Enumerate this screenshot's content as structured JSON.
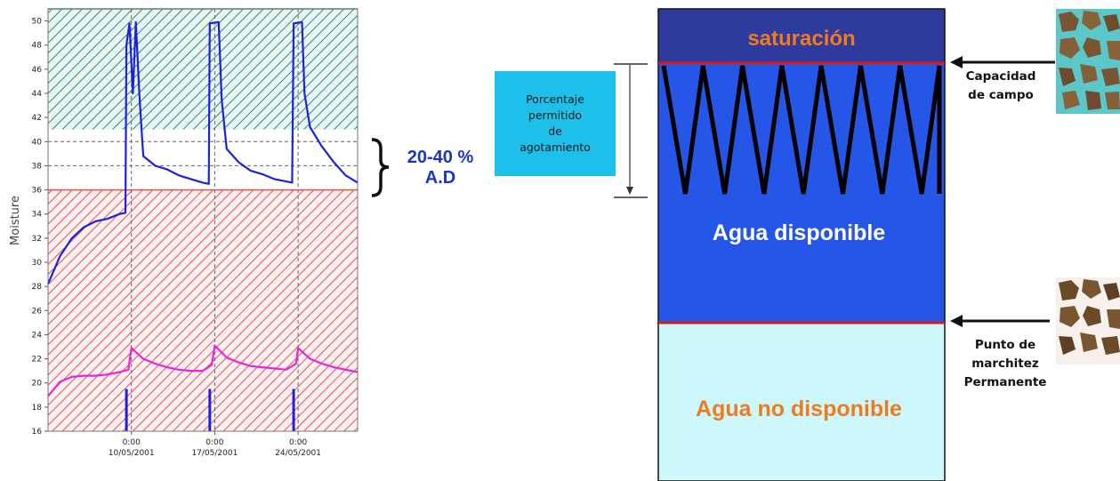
{
  "chart_data": {
    "type": "line",
    "ylabel": "Moisture",
    "ylim": [
      16,
      51
    ],
    "yticks": [
      16,
      18,
      20,
      22,
      24,
      26,
      28,
      30,
      32,
      34,
      36,
      38,
      40,
      42,
      44,
      46,
      48,
      50
    ],
    "xlim": [
      "2001-05-03",
      "2001-05-29"
    ],
    "xticks": [
      {
        "date": "2001-05-10",
        "time": "0:00",
        "label": "10/05/2001"
      },
      {
        "date": "2001-05-17",
        "time": "0:00",
        "label": "17/05/2001"
      },
      {
        "date": "2001-05-24",
        "time": "0:00",
        "label": "24/05/2001"
      }
    ],
    "bands": [
      {
        "from": 41,
        "to": 51,
        "color": "#2a8a7c",
        "pattern": "hatch"
      },
      {
        "from": 36,
        "to": 41,
        "color": "#ffffff",
        "pattern": "none"
      },
      {
        "from": 16,
        "to": 36,
        "color": "#e8504f",
        "pattern": "hatch"
      }
    ],
    "dashed_reference_lines": [
      38,
      40
    ],
    "series": [
      {
        "color": "#1a22e0",
        "points": [
          [
            "2001-05-03",
            28.2
          ],
          [
            "2001-05-04",
            30.5
          ],
          [
            "2001-05-05",
            32.0
          ],
          [
            "2001-05-06",
            32.9
          ],
          [
            "2001-05-07",
            33.4
          ],
          [
            "2001-05-08",
            33.6
          ],
          [
            "2001-05-09",
            34.0
          ],
          [
            "2001-05-09T12",
            34.1
          ],
          [
            "2001-05-09T14",
            48.0
          ],
          [
            "2001-05-09T20",
            49.8
          ],
          [
            "2001-05-10T03",
            44.0
          ],
          [
            "2001-05-10T09",
            49.9
          ],
          [
            "2001-05-10T16",
            44.0
          ],
          [
            "2001-05-10T22",
            40.0
          ],
          [
            "2001-05-11",
            38.8
          ],
          [
            "2001-05-12",
            38.0
          ],
          [
            "2001-05-13",
            37.7
          ],
          [
            "2001-05-14",
            37.2
          ],
          [
            "2001-05-15",
            36.9
          ],
          [
            "2001-05-16",
            36.6
          ],
          [
            "2001-05-16T12",
            36.5
          ],
          [
            "2001-05-16T14",
            49.8
          ],
          [
            "2001-05-17T08",
            49.9
          ],
          [
            "2001-05-17T14",
            43.5
          ],
          [
            "2001-05-18",
            39.4
          ],
          [
            "2001-05-19",
            38.3
          ],
          [
            "2001-05-20",
            37.6
          ],
          [
            "2001-05-21",
            37.3
          ],
          [
            "2001-05-22",
            36.9
          ],
          [
            "2001-05-23",
            36.7
          ],
          [
            "2001-05-23T12",
            36.6
          ],
          [
            "2001-05-23T15",
            49.8
          ],
          [
            "2001-05-24T08",
            49.9
          ],
          [
            "2001-05-24T13",
            44.0
          ],
          [
            "2001-05-25",
            41.2
          ],
          [
            "2001-05-26",
            39.6
          ],
          [
            "2001-05-27",
            38.3
          ],
          [
            "2001-05-28",
            37.2
          ],
          [
            "2001-05-29",
            36.6
          ]
        ]
      },
      {
        "color": "#ee22dd",
        "points": [
          [
            "2001-05-03",
            18.9
          ],
          [
            "2001-05-04",
            20.1
          ],
          [
            "2001-05-05",
            20.5
          ],
          [
            "2001-05-06",
            20.6
          ],
          [
            "2001-05-07",
            20.6
          ],
          [
            "2001-05-08",
            20.7
          ],
          [
            "2001-05-09",
            20.9
          ],
          [
            "2001-05-09T18",
            21.1
          ],
          [
            "2001-05-10",
            22.9
          ],
          [
            "2001-05-11",
            22.0
          ],
          [
            "2001-05-12",
            21.6
          ],
          [
            "2001-05-13",
            21.3
          ],
          [
            "2001-05-14",
            21.1
          ],
          [
            "2001-05-15",
            21.0
          ],
          [
            "2001-05-16",
            21.0
          ],
          [
            "2001-05-16T18",
            21.5
          ],
          [
            "2001-05-17",
            23.1
          ],
          [
            "2001-05-18",
            22.1
          ],
          [
            "2001-05-19",
            21.7
          ],
          [
            "2001-05-20",
            21.4
          ],
          [
            "2001-05-21",
            21.3
          ],
          [
            "2001-05-22",
            21.2
          ],
          [
            "2001-05-23",
            21.1
          ],
          [
            "2001-05-23T20",
            21.6
          ],
          [
            "2001-05-24",
            22.9
          ],
          [
            "2001-05-25",
            22.0
          ],
          [
            "2001-05-26",
            21.6
          ],
          [
            "2001-05-27",
            21.3
          ],
          [
            "2001-05-28",
            21.1
          ],
          [
            "2001-05-29",
            20.9
          ]
        ]
      }
    ],
    "irrigation_events": [
      {
        "date": "2001-05-09T14",
        "from": 16,
        "to": 19.5,
        "color": "#1a22e0"
      },
      {
        "date": "2001-05-16T14",
        "from": 16,
        "to": 19.5,
        "color": "#1a22e0"
      },
      {
        "date": "2001-05-23T15",
        "from": 16,
        "to": 19.5,
        "color": "#1a22e0"
      }
    ]
  },
  "annotations": {
    "ad_range_line1": "20-40 %",
    "ad_range_line2": "A.D",
    "paa_box": "Porcentaje\npermitido\nde\nagotamiento"
  },
  "soil_diagram": {
    "saturation_label": "saturación",
    "available_label": "Agua disponible",
    "unavailable_label": "Agua no disponible",
    "field_capacity_label": "Capacidad\nde campo",
    "wilting_point_label": "Punto de\nmarchitez\nPermanente",
    "colors": {
      "saturation": "#2e3a9e",
      "available": "#2656e8",
      "unavailable": "#ccf8fb",
      "boundary": "#d41c1c",
      "orange_text": "#f07a1e"
    },
    "zigzag_cycles": 7
  }
}
